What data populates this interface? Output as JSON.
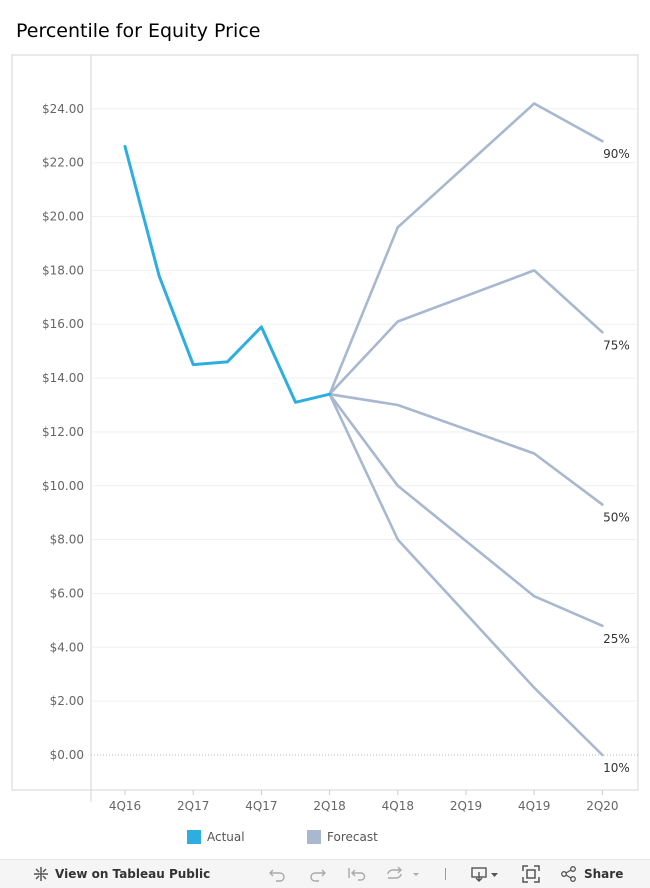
{
  "title": "Percentile for Equity Price",
  "legend": [
    {
      "label": "Actual",
      "color": "#2eaee0"
    },
    {
      "label": "Forecast",
      "color": "#a8b8cf"
    }
  ],
  "toolbar": {
    "view_label": "View on Tableau Public",
    "share_label": "Share",
    "icons": [
      "tableau-public-icon",
      "undo-icon",
      "redo-icon",
      "revert-icon",
      "refresh-icon",
      "download-icon",
      "fullscreen-icon",
      "share-icon"
    ]
  },
  "chart_data": {
    "type": "line",
    "title": "Percentile for Equity Price",
    "xlabel": "",
    "ylabel": "",
    "x_ticks": [
      "4Q16",
      "2Q17",
      "4Q17",
      "2Q18",
      "4Q18",
      "2Q19",
      "4Q19",
      "2Q20"
    ],
    "x_categories": [
      "4Q16",
      "1Q17",
      "2Q17",
      "3Q17",
      "4Q17",
      "1Q18",
      "2Q18",
      "3Q18",
      "4Q18",
      "1Q19",
      "2Q19",
      "3Q19",
      "4Q19",
      "1Q20",
      "2Q20"
    ],
    "y_ticks": [
      "$0.00",
      "$2.00",
      "$4.00",
      "$6.00",
      "$8.00",
      "$10.00",
      "$12.00",
      "$14.00",
      "$16.00",
      "$18.00",
      "$20.00",
      "$22.00",
      "$24.00"
    ],
    "ylim": [
      -1.3,
      26.0
    ],
    "grid": true,
    "legend_position": "bottom",
    "series": [
      {
        "name": "Actual",
        "color": "#2eaee0",
        "points": [
          [
            "4Q16",
            22.6
          ],
          [
            "1Q17",
            17.8
          ],
          [
            "2Q17",
            14.5
          ],
          [
            "3Q17",
            14.6
          ],
          [
            "4Q17",
            15.9
          ],
          [
            "1Q18",
            13.1
          ],
          [
            "2Q18",
            13.4
          ]
        ]
      },
      {
        "name": "Forecast",
        "color": "#a8b8cf",
        "label": "90%",
        "points": [
          [
            "2Q18",
            13.4
          ],
          [
            "4Q18",
            19.6
          ],
          [
            "4Q19",
            24.2
          ],
          [
            "2Q20",
            22.8
          ]
        ]
      },
      {
        "name": "Forecast",
        "color": "#a8b8cf",
        "label": "75%",
        "points": [
          [
            "2Q18",
            13.4
          ],
          [
            "4Q18",
            16.1
          ],
          [
            "4Q19",
            18.0
          ],
          [
            "2Q20",
            15.7
          ]
        ]
      },
      {
        "name": "Forecast",
        "color": "#a8b8cf",
        "label": "50%",
        "points": [
          [
            "2Q18",
            13.4
          ],
          [
            "4Q18",
            13.0
          ],
          [
            "4Q19",
            11.2
          ],
          [
            "2Q20",
            9.3
          ]
        ]
      },
      {
        "name": "Forecast",
        "color": "#a8b8cf",
        "label": "25%",
        "points": [
          [
            "2Q18",
            13.4
          ],
          [
            "4Q18",
            10.0
          ],
          [
            "4Q19",
            5.9
          ],
          [
            "2Q20",
            4.8
          ]
        ]
      },
      {
        "name": "Forecast",
        "color": "#a8b8cf",
        "label": "10%",
        "points": [
          [
            "2Q18",
            13.4
          ],
          [
            "4Q18",
            8.0
          ],
          [
            "4Q19",
            2.5
          ],
          [
            "2Q20",
            0.0
          ]
        ]
      }
    ]
  }
}
